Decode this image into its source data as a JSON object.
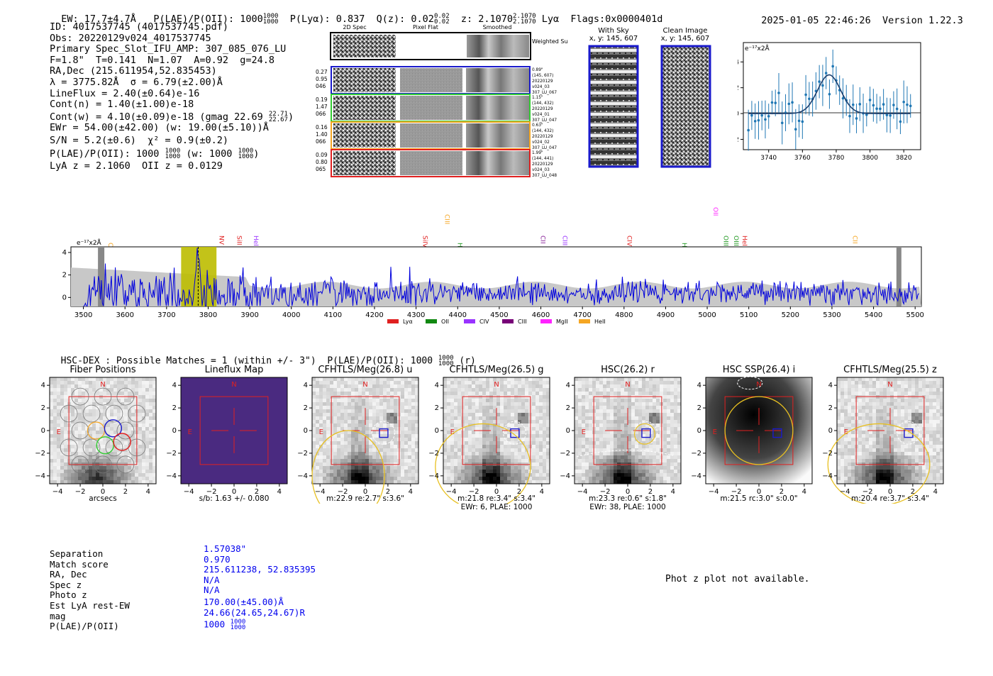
{
  "header": {
    "ew": "EW: 17.7±4.7Å",
    "plae_label": "P(LAE)/P(OII): 1000",
    "plae_hi": "1000",
    "plae_lo": "1000",
    "plya": "P(Lyα): 0.837",
    "qz_label": "Q(z): 0.02",
    "qz_hi": "0.02",
    "qz_lo": "0.02",
    "z_label": "z: 2.1070",
    "z_hi": "2.1070",
    "z_lo": "2.1070",
    "line_name": "Lyα",
    "flags": "Flags:0x0000401d",
    "datetime": "2025-01-05 22:46:26",
    "version": "Version 1.22.3"
  },
  "info": {
    "lines": [
      "ID: 4017537745 (4017537745.pdf)",
      "Obs: 20220129v024_4017537745",
      "Primary Spec_Slot_IFU_AMP: 307_085_076_LU",
      "F=1.8\"  T=0.141  N=1.07  A=0.92  g=24.8",
      "RA,Dec (215.611954,52.835453)",
      "λ = 3775.82Å  σ = 6.79(±2.00)Å",
      "LineFlux = 2.40(±0.64)e-16",
      "Cont(n) = 1.40(±1.00)e-18"
    ],
    "contw": "Cont(w) = 4.10(±0.09)e-18 (gmag 22.69",
    "contw_hi": "22.71",
    "contw_lo": "22.67",
    "lines2": [
      "EWr = 54.00(±42.00) (w: 19.00(±5.10))Å",
      "S/N = 5.2(±0.6)  χ² = 0.9(±0.2)"
    ],
    "plae": "P(LAE)/P(OII): 1000",
    "plae_hi": "1000",
    "plae_lo": "1000",
    "plae_w": "(w: 1000",
    "plae_w_hi": "1000",
    "plae_w_lo": "1000",
    "lya_z": "LyA z = 2.1060  OII z = 0.0129"
  },
  "cutouts": {
    "col_headers": [
      "2D Spec",
      "Pixel Flat",
      "Smoothed"
    ],
    "weighted_sum": "Weighted Sum",
    "rows": [
      {
        "left": [
          "0.27",
          "0.95",
          "046"
        ],
        "right": [
          "0.89\"",
          "(145, 607)",
          "20220129",
          "v024_03",
          "307_LU_067"
        ],
        "color": "#1a1acc"
      },
      {
        "left": [
          "0.19",
          "1.47",
          "066"
        ],
        "right": [
          "1.15\"",
          "(144, 432)",
          "20220129",
          "v024_01",
          "307_LU_047"
        ],
        "color": "#33cc33"
      },
      {
        "left": [
          "0.16",
          "1.40",
          "066"
        ],
        "right": [
          "0.63\"",
          "(144, 432)",
          "20220129",
          "v024_02",
          "307_LU_047"
        ],
        "color": "#f5a623"
      },
      {
        "left": [
          "0.09",
          "0.80",
          "065"
        ],
        "right": [
          "1.99\"",
          "(144, 441)",
          "20220129",
          "v024_03",
          "307_LU_048"
        ],
        "color": "#e02020"
      }
    ],
    "with_sky": "With Sky",
    "with_sky_xy": "x, y: 145, 607",
    "clean": "Clean Image",
    "clean_xy": "x, y: 145, 607"
  },
  "zoom_spectrum": {
    "ylabel": "e⁻¹⁷x2Å",
    "xticks": [
      "3740",
      "3760",
      "3780",
      "3800",
      "3820"
    ],
    "yticks": [
      "4",
      "2",
      "0",
      "−2"
    ]
  },
  "full_spectrum": {
    "ylabel": "e⁻¹⁷x2Å",
    "xticks": [
      "3500",
      "3600",
      "3700",
      "3800",
      "3900",
      "4000",
      "4100",
      "4200",
      "4300",
      "4400",
      "4500",
      "4600",
      "4700",
      "4800",
      "4900",
      "5000",
      "5100",
      "5200",
      "5300",
      "5400",
      "5500"
    ],
    "yticks": [
      "4",
      "2",
      "0"
    ],
    "lines": [
      {
        "name": "CIV",
        "color": "#f5a623"
      },
      {
        "name": "NV",
        "color": "#e02020"
      },
      {
        "name": "SiII",
        "color": "#e02020"
      },
      {
        "name": "HeII",
        "color": "#9933ff"
      },
      {
        "name": "SiIV",
        "color": "#e02020"
      },
      {
        "name": "CIII",
        "color": "#f5a623"
      },
      {
        "name": "Hγ",
        "color": "#229922"
      },
      {
        "name": "CII",
        "color": "#882299"
      },
      {
        "name": "CIII",
        "color": "#9933ff"
      },
      {
        "name": "CIV",
        "color": "#e02020"
      },
      {
        "name": "Hβ",
        "color": "#229922"
      },
      {
        "name": "OII",
        "color": "#ff22ff"
      },
      {
        "name": "OIII",
        "color": "#229922"
      },
      {
        "name": "OIII",
        "color": "#229922"
      },
      {
        "name": "HeII",
        "color": "#e02020"
      },
      {
        "name": "CII",
        "color": "#f5a623"
      }
    ],
    "legend": [
      {
        "name": "Lyα",
        "color": "#e02020"
      },
      {
        "name": "OII",
        "color": "#118811"
      },
      {
        "name": "CIV",
        "color": "#9933ff"
      },
      {
        "name": "CIII",
        "color": "#770077"
      },
      {
        "name": "MgII",
        "color": "#ff22ff"
      },
      {
        "name": "HeII",
        "color": "#f5a623"
      }
    ]
  },
  "hsc": {
    "title": "HSC-DEX : Possible Matches = 1 (within +/- 3\")  P(LAE)/P(OII): 1000",
    "title_hi": "1000",
    "title_lo": "1000",
    "title_suffix": "(r)"
  },
  "panels": [
    {
      "title": "Fiber Positions",
      "cap1": "arcsecs",
      "cap2": ""
    },
    {
      "title": "Lineflux Map",
      "cap1": "s/b: 1.63 +/- 0.080",
      "cap2": ""
    },
    {
      "title": "CFHTLS/Meg(26.8) u",
      "cap1": "m:22.9  re:2.7\"  s:3.6\"",
      "cap2": ""
    },
    {
      "title": "CFHTLS/Meg(26.5) g",
      "cap1": "m:21.8  re:3.4\"  s:3.4\"",
      "cap2": "EWr: 6, PLAE: 1000"
    },
    {
      "title": "HSC(26.2) r",
      "cap1": "m:23.3  re:0.6\"  s:1.8\"",
      "cap2": "EWr: 38, PLAE: 1000"
    },
    {
      "title": "HSC SSP(26.4) i",
      "cap1": "m:21.5  rc:3.0\"  s:0.0\"",
      "cap2": ""
    },
    {
      "title": "CFHTLS/Meg(25.5) z",
      "cap1": "m:20.4  re:3.7\"  s:3.4\"",
      "cap2": ""
    }
  ],
  "panel_axes": {
    "ticks": [
      "−4",
      "−2",
      "0",
      "2",
      "4"
    ],
    "yticks": [
      "4",
      "2",
      "0",
      "−2",
      "−4"
    ],
    "north": "N",
    "east": "E"
  },
  "match": {
    "labels": [
      "Separation",
      "Match score",
      "RA, Dec",
      "Spec z",
      "Photo z",
      "Est LyA rest-EW",
      "mag",
      "P(LAE)/P(OII)"
    ],
    "values": [
      "1.57038\"",
      "0.970",
      "215.611238, 52.835395",
      "N/A",
      "N/A",
      "170.00(±45.00)Å",
      "24.66(24.65,24.67)R"
    ],
    "plae": "1000",
    "plae_hi": "1000",
    "plae_lo": "1000"
  },
  "photz": "Phot z plot not available."
}
